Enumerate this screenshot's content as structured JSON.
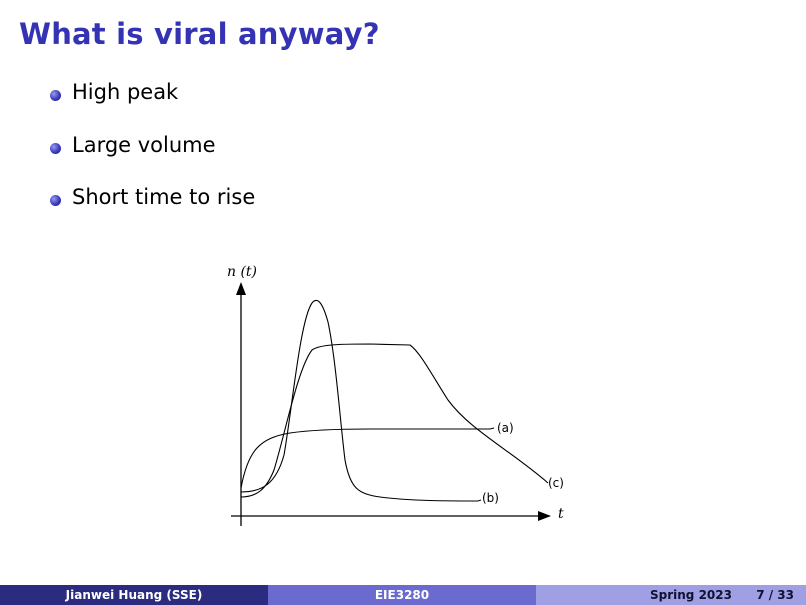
{
  "slide": {
    "title": "What is viral anyway?"
  },
  "bullets": [
    {
      "text": "High peak"
    },
    {
      "text": "Large volume"
    },
    {
      "text": "Short time to rise"
    }
  ],
  "figure": {
    "y_axis_label": "n (t)",
    "x_axis_label": "t",
    "curve_labels": {
      "a": "(a)",
      "b": "(b)",
      "c": "(c)"
    }
  },
  "footer": {
    "author": "Jianwei Huang  (SSE)",
    "course": "EIE3280",
    "date": "Spring 2023",
    "page": "7 / 33"
  }
}
